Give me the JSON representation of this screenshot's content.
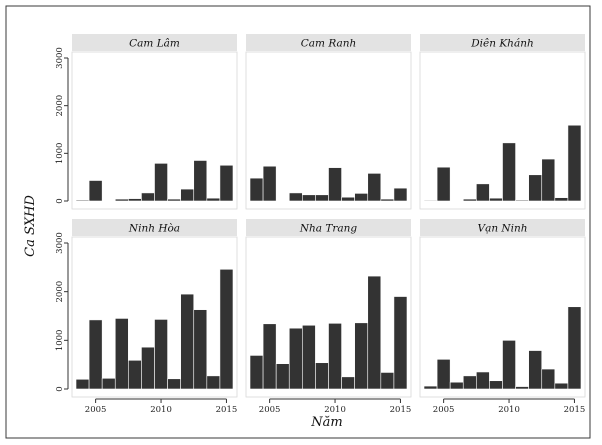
{
  "chart_data": {
    "type": "bar",
    "layout": "facet-grid 2x3",
    "xlabel": "Năm",
    "ylabel": "Ca SXHD",
    "x": [
      2004,
      2005,
      2006,
      2007,
      2008,
      2009,
      2010,
      2011,
      2012,
      2013,
      2014,
      2015
    ],
    "xticks": [
      2005,
      2010,
      2015
    ],
    "ylim": [
      0,
      3000
    ],
    "yticks": [
      0,
      1000,
      2000,
      3000
    ],
    "grid": false,
    "bar_color": "#333333",
    "panels": [
      {
        "name": "Cam Lâm",
        "values": [
          20,
          430,
          0,
          40,
          50,
          170,
          790,
          40,
          250,
          850,
          60,
          750
        ]
      },
      {
        "name": "Cam Ranh",
        "values": [
          480,
          730,
          0,
          170,
          130,
          130,
          700,
          80,
          160,
          580,
          40,
          270
        ]
      },
      {
        "name": "Diên Khánh",
        "values": [
          15,
          710,
          0,
          40,
          360,
          60,
          1220,
          20,
          550,
          880,
          70,
          1590
        ]
      },
      {
        "name": "Ninh Hòa",
        "values": [
          200,
          1420,
          220,
          1450,
          590,
          860,
          1430,
          210,
          1950,
          1630,
          270,
          2460
        ]
      },
      {
        "name": "Nha Trang",
        "values": [
          690,
          1340,
          520,
          1250,
          1310,
          540,
          1350,
          250,
          1360,
          2320,
          340,
          1900
        ]
      },
      {
        "name": "Vạn Ninh",
        "values": [
          60,
          610,
          140,
          270,
          350,
          170,
          1000,
          50,
          790,
          410,
          120,
          1690
        ]
      }
    ]
  }
}
